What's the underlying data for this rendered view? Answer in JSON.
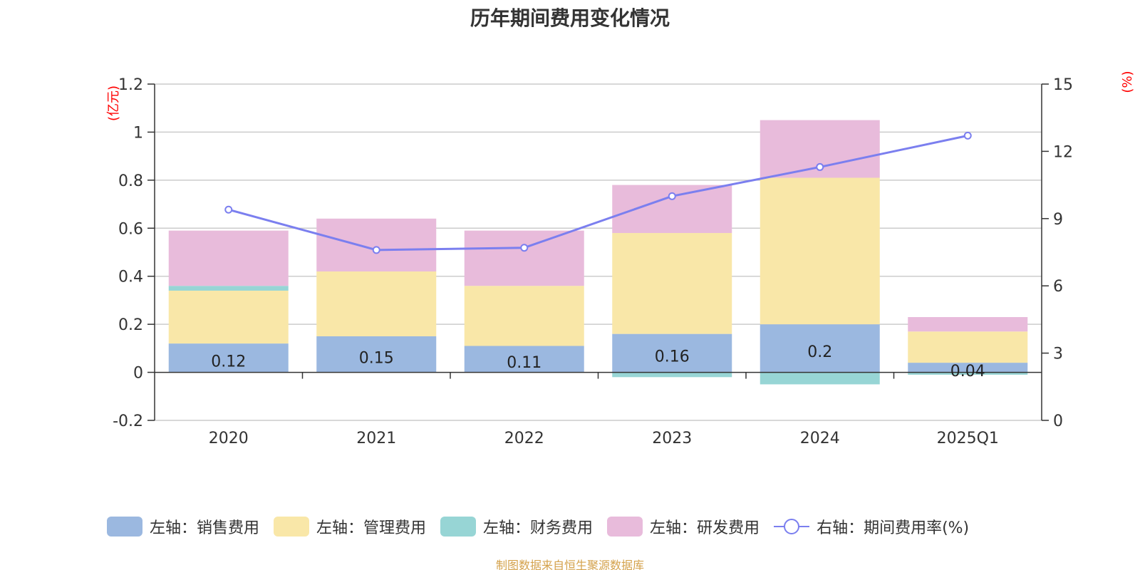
{
  "chart_data": {
    "type": "bar",
    "stacked": true,
    "title": "历年期间费用变化情况",
    "categories": [
      "2020",
      "2021",
      "2022",
      "2023",
      "2024",
      "2025Q1"
    ],
    "left_axis": {
      "unit": "(亿元)",
      "ylim": [
        -0.2,
        1.2
      ],
      "ticks": [
        "1.2",
        "1",
        "0.8",
        "0.6",
        "0.4",
        "0.2",
        "0",
        "-0.2"
      ]
    },
    "right_axis": {
      "unit": "(%)",
      "ylim": [
        0,
        15
      ],
      "ticks": [
        "15",
        "12",
        "9",
        "6",
        "3",
        "0"
      ]
    },
    "series": [
      {
        "name": "左轴：销售费用",
        "color": "#9bb8e0",
        "values": [
          0.12,
          0.15,
          0.11,
          0.16,
          0.2,
          0.04
        ],
        "labels": [
          "0.12",
          "0.15",
          "0.11",
          "0.16",
          "0.2",
          "0.04"
        ]
      },
      {
        "name": "左轴：管理费用",
        "color": "#f9e7a8",
        "values": [
          0.22,
          0.27,
          0.25,
          0.42,
          0.61,
          0.13
        ]
      },
      {
        "name": "左轴：财务费用",
        "color": "#97d5d5",
        "values": [
          0.02,
          0.0,
          0.0,
          -0.02,
          -0.05,
          -0.01
        ]
      },
      {
        "name": "左轴：研发费用",
        "color": "#e8bbdb",
        "values": [
          0.23,
          0.22,
          0.23,
          0.2,
          0.24,
          0.06
        ]
      }
    ],
    "line": {
      "name": "右轴：期间费用率(%)",
      "color": "#7b7fef",
      "values": [
        9.4,
        7.6,
        7.7,
        10.0,
        11.3,
        12.7
      ]
    },
    "grid": true,
    "legend_position": "bottom"
  },
  "source_note": "制图数据来自恒生聚源数据库"
}
